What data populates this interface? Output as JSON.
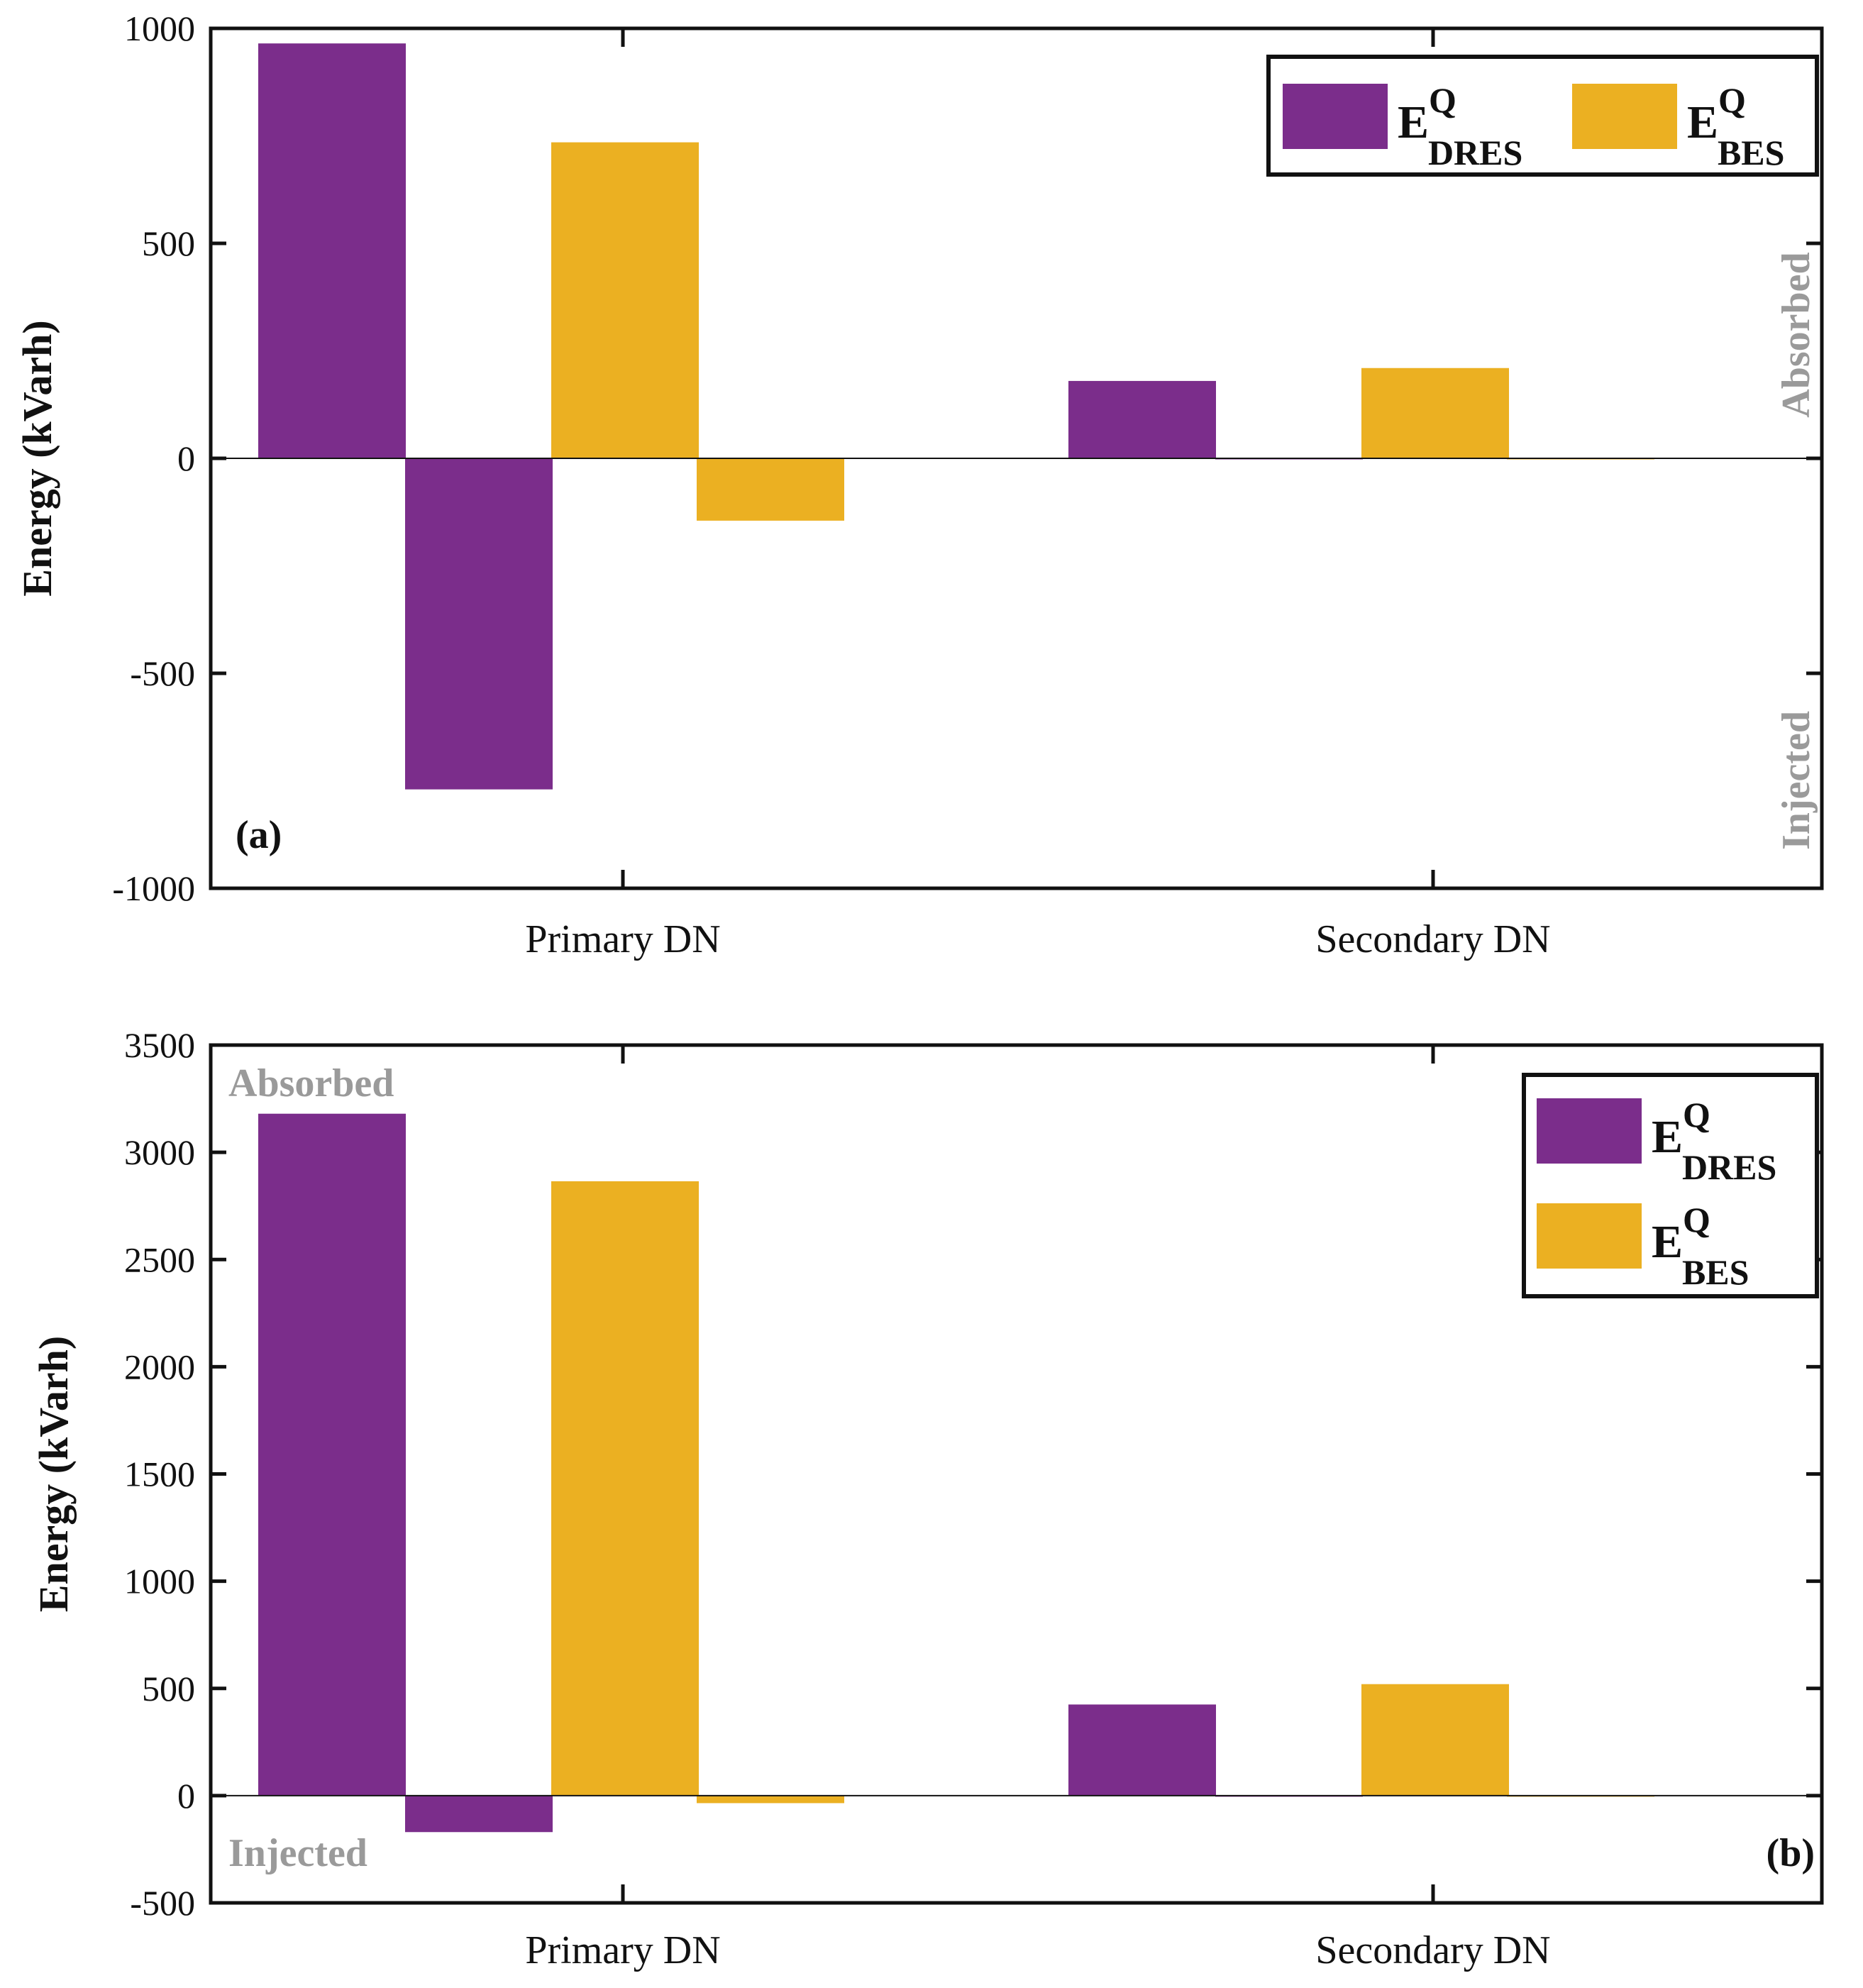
{
  "chart_data": [
    {
      "type": "bar",
      "panel_label": "(a)",
      "categories": [
        "Primary DN",
        "Secondary DN"
      ],
      "series": [
        {
          "name": "E^Q_DRES (absorbed)",
          "values": [
            965,
            180
          ],
          "color": "#7b2d8b"
        },
        {
          "name": "E^Q_DRES (injected)",
          "values": [
            -770,
            -2
          ],
          "color": "#7b2d8b"
        },
        {
          "name": "E^Q_BES (absorbed)",
          "values": [
            735,
            210
          ],
          "color": "#ebb022"
        },
        {
          "name": "E^Q_BES (injected)",
          "values": [
            -145,
            -2
          ],
          "color": "#ebb022"
        }
      ],
      "ylabel": "Energy (kVarh)",
      "ylim": [
        -1000,
        1000
      ],
      "yticks": [
        -1000,
        -500,
        0,
        500,
        1000
      ],
      "annotations": {
        "upper": "Absorbed",
        "lower": "Injected",
        "orientation": "vertical",
        "side": "right"
      },
      "legend": {
        "placement": "top-right",
        "layout": "horizontal",
        "entries": [
          {
            "main": "E",
            "sup": "Q",
            "sub": "DRES",
            "color": "#7b2d8b"
          },
          {
            "main": "E",
            "sup": "Q",
            "sub": "BES",
            "color": "#ebb022"
          }
        ]
      },
      "panel_label_placement": "bottom-left"
    },
    {
      "type": "bar",
      "panel_label": "(b)",
      "categories": [
        "Primary DN",
        "Secondary DN"
      ],
      "series": [
        {
          "name": "E^Q_DRES (absorbed)",
          "values": [
            3180,
            425
          ],
          "color": "#7b2d8b"
        },
        {
          "name": "E^Q_DRES (injected)",
          "values": [
            -170,
            -5
          ],
          "color": "#7b2d8b"
        },
        {
          "name": "E^Q_BES (absorbed)",
          "values": [
            2865,
            520
          ],
          "color": "#ebb022"
        },
        {
          "name": "E^Q_BES (injected)",
          "values": [
            -35,
            -5
          ],
          "color": "#ebb022"
        }
      ],
      "ylabel": "Energy (kVarh)",
      "ylim": [
        -500,
        3500
      ],
      "yticks": [
        -500,
        0,
        500,
        1000,
        1500,
        2000,
        2500,
        3000,
        3500
      ],
      "annotations": {
        "upper": "Absorbed",
        "lower": "Injected",
        "orientation": "horizontal",
        "side": "left"
      },
      "legend": {
        "placement": "top-right",
        "layout": "vertical",
        "entries": [
          {
            "main": "E",
            "sup": "Q",
            "sub": "DRES",
            "color": "#7b2d8b"
          },
          {
            "main": "E",
            "sup": "Q",
            "sub": "BES",
            "color": "#ebb022"
          }
        ]
      },
      "panel_label_placement": "bottom-right"
    }
  ]
}
